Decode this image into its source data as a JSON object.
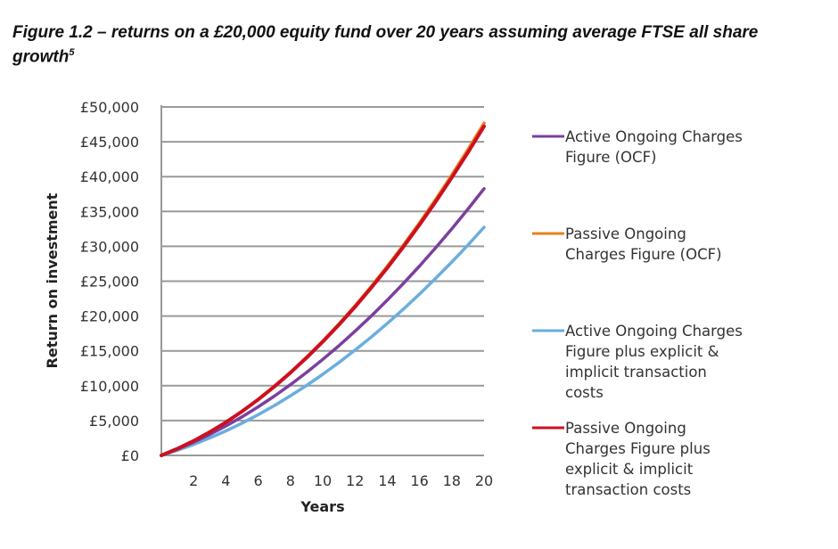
{
  "title": "Figure 1.2 – returns on a £20,000 equity fund over 20 years assuming average FTSE all share growth",
  "title_footnote": "5",
  "chart_data": {
    "type": "line",
    "title": "Figure 1.2 – returns on a £20,000 equity fund over 20 years assuming average FTSE all share growth",
    "xlabel": "Years",
    "ylabel": "Return on investment",
    "xlim": [
      0,
      20
    ],
    "ylim": [
      0,
      50000
    ],
    "x_ticks": [
      "2",
      "4",
      "6",
      "8",
      "10",
      "12",
      "14",
      "16",
      "18",
      "20"
    ],
    "y_ticks": [
      "£0",
      "£5,000",
      "£10,000",
      "£15,000",
      "£20,000",
      "£25,000",
      "£30,000",
      "£35,000",
      "£40,000",
      "£45,000",
      "£50,000"
    ],
    "grid": true,
    "legend_position": "right",
    "x": [
      0,
      1,
      2,
      3,
      4,
      5,
      6,
      7,
      8,
      9,
      10,
      11,
      12,
      13,
      14,
      15,
      16,
      17,
      18,
      19,
      20
    ],
    "series": [
      {
        "name": "Active Ongoing Charges Figure (OCF)",
        "legend_lines": [
          "Active Ongoing Charges",
          "Figure (OCF)"
        ],
        "color": "#7b3f9e",
        "values": [
          0,
          890,
          1890,
          3000,
          4220,
          5540,
          6970,
          8510,
          10150,
          11910,
          13770,
          15730,
          17810,
          19990,
          22280,
          24680,
          27180,
          29790,
          32510,
          35340,
          38280
        ]
      },
      {
        "name": "Passive Ongoing Charges Figure (OCF)",
        "legend_lines": [
          "Passive Ongoing",
          "Charges Figure (OCF)"
        ],
        "color": "#e8801e",
        "values": [
          0,
          970,
          2090,
          3350,
          4770,
          6340,
          8050,
          9910,
          11920,
          14090,
          16400,
          18850,
          21460,
          24220,
          27130,
          30180,
          33380,
          36740,
          40240,
          43890,
          47690
        ]
      },
      {
        "name": "Active Ongoing Charges Figure plus explicit & implicit transaction costs",
        "legend_lines": [
          "Active Ongoing Charges",
          "Figure plus explicit &",
          "implicit transaction",
          "costs"
        ],
        "color": "#6aaede",
        "values": [
          0,
          740,
          1570,
          2500,
          3520,
          4630,
          5850,
          7150,
          8550,
          10040,
          11640,
          13320,
          15100,
          16970,
          18940,
          21000,
          23150,
          25410,
          27750,
          30190,
          32740
        ]
      },
      {
        "name": "Passive Ongoing Charges Figure plus explicit & implicit transaction costs",
        "legend_lines": [
          "Passive Ongoing",
          "Charges Figure plus",
          "explicit & implicit",
          "transaction costs"
        ],
        "color": "#cc1020",
        "values": [
          0,
          970,
          2090,
          3350,
          4760,
          6320,
          8020,
          9870,
          11870,
          14010,
          16300,
          18730,
          21310,
          24040,
          26910,
          29930,
          33100,
          36410,
          39870,
          43470,
          47230
        ]
      }
    ]
  }
}
